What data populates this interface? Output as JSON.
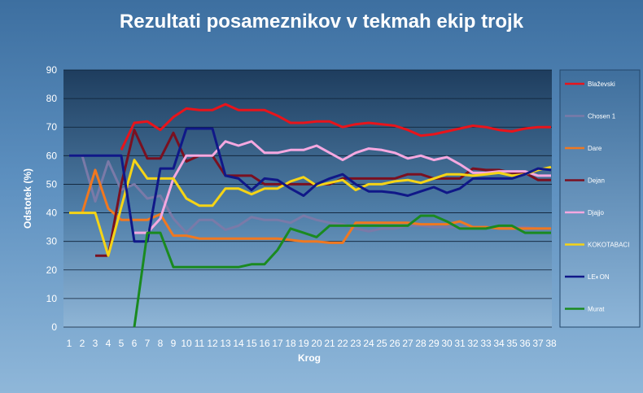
{
  "chart_data": {
    "type": "line",
    "title": "Rezultati posameznikov  v tekmah ekip trojk",
    "xlabel": "Krog",
    "ylabel": "Odstotek (%)",
    "ylim": [
      0,
      90
    ],
    "yticks": [
      0,
      10,
      20,
      30,
      40,
      50,
      60,
      70,
      80,
      90
    ],
    "grid": true,
    "legend_position": "right",
    "categories": [
      "1",
      "2",
      "3",
      "4",
      "5",
      "6",
      "7",
      "8",
      "9",
      "10",
      "11",
      "12",
      "13",
      "14",
      "15",
      "16",
      "17",
      "18",
      "19",
      "20",
      "21",
      "22",
      "23",
      "24",
      "25",
      "26",
      "27",
      "28",
      "29",
      "30",
      "31",
      "32",
      "33",
      "34",
      "35",
      "36",
      "37",
      "38"
    ],
    "series": [
      {
        "name": "Blaževski",
        "color": "#e8141b",
        "values": [
          null,
          null,
          null,
          null,
          62,
          71.5,
          72,
          69,
          73.5,
          76.5,
          76,
          76,
          78,
          76,
          76,
          76,
          74,
          71.5,
          71.5,
          72,
          72,
          70,
          71,
          71.5,
          71,
          70.5,
          69,
          67,
          67.5,
          68.5,
          69.5,
          70.5,
          70,
          69,
          68.5,
          69.5,
          70,
          70
        ]
      },
      {
        "name": "Chosen 1",
        "color": "#7a7aa8",
        "values": [
          60,
          60,
          44,
          58,
          48,
          50,
          45,
          46,
          38,
          33,
          37.5,
          37.5,
          34,
          35.5,
          38.5,
          37.5,
          37.5,
          36.5,
          39,
          37.5,
          36.5,
          36,
          34.5,
          33.5,
          34.5,
          34.5,
          35.5,
          35.5,
          35,
          35,
          35,
          35,
          35,
          35,
          35,
          35,
          34.5,
          34.5
        ]
      },
      {
        "name": "Dare",
        "color": "#f07820",
        "values": [
          null,
          40,
          55,
          41.5,
          37.5,
          37.5,
          37.5,
          39.5,
          32,
          32,
          31,
          31,
          31,
          31,
          31,
          31,
          31,
          30.5,
          30,
          30,
          29.5,
          29.5,
          36.5,
          36.5,
          36.5,
          36.5,
          36.5,
          36,
          36,
          36,
          37,
          35,
          35,
          34.5,
          34.5,
          34.5,
          34.5,
          34.5
        ]
      },
      {
        "name": "Dejan",
        "color": "#7a1020",
        "values": [
          null,
          null,
          25,
          25,
          50,
          69,
          59,
          59,
          68,
          58,
          60,
          60,
          53,
          53,
          53,
          50,
          50,
          50,
          50,
          50,
          50,
          52,
          52,
          52,
          52,
          52,
          53.5,
          53.5,
          52,
          52,
          52,
          55.5,
          55,
          55,
          54,
          54,
          51.5,
          51.5
        ]
      },
      {
        "name": "Djajjo",
        "color": "#f5a8e0",
        "values": [
          null,
          null,
          null,
          null,
          null,
          33,
          33,
          38,
          52,
          60,
          60,
          60,
          65,
          63.5,
          65,
          61,
          61,
          62,
          62,
          63.5,
          61,
          58.5,
          61,
          62.5,
          62,
          61,
          59,
          60,
          58.5,
          59.5,
          57,
          54,
          54,
          54.5,
          54.5,
          54.5,
          53,
          53
        ]
      },
      {
        "name": "KOKOTABACI",
        "color": "#f5d416",
        "values": [
          40,
          40,
          40,
          25,
          42,
          58.5,
          52,
          52,
          52,
          45,
          42.5,
          42.5,
          48.5,
          48.5,
          46.5,
          48.5,
          48.5,
          51,
          52.5,
          49.5,
          50.5,
          51.5,
          48,
          50,
          50,
          51,
          51.5,
          50.5,
          52,
          53.5,
          53.5,
          53,
          53.5,
          54,
          53,
          53.5,
          55,
          56
        ]
      },
      {
        "name": "LE◐ON",
        "color": "#101888",
        "values": [
          60,
          60,
          60,
          60,
          60,
          30,
          30,
          55.5,
          55.5,
          69.5,
          69.5,
          69.5,
          53,
          52,
          48,
          52,
          51.5,
          48.5,
          46,
          50,
          52,
          53.5,
          50,
          47.5,
          47.5,
          47,
          46,
          47.5,
          49,
          47,
          48.5,
          52,
          52,
          52,
          52,
          53.5,
          55.5,
          55
        ]
      },
      {
        "name": "Murat",
        "color": "#1a8a20",
        "values": [
          null,
          null,
          null,
          null,
          null,
          0,
          33,
          33,
          21,
          21,
          21,
          21,
          21,
          21,
          22,
          22,
          27,
          34.5,
          33,
          31.5,
          35.5,
          35.5,
          35.5,
          35.5,
          35.5,
          35.5,
          35.5,
          39,
          39,
          37,
          34.5,
          34.5,
          34.5,
          35.5,
          35.5,
          33,
          33,
          33
        ]
      }
    ]
  }
}
